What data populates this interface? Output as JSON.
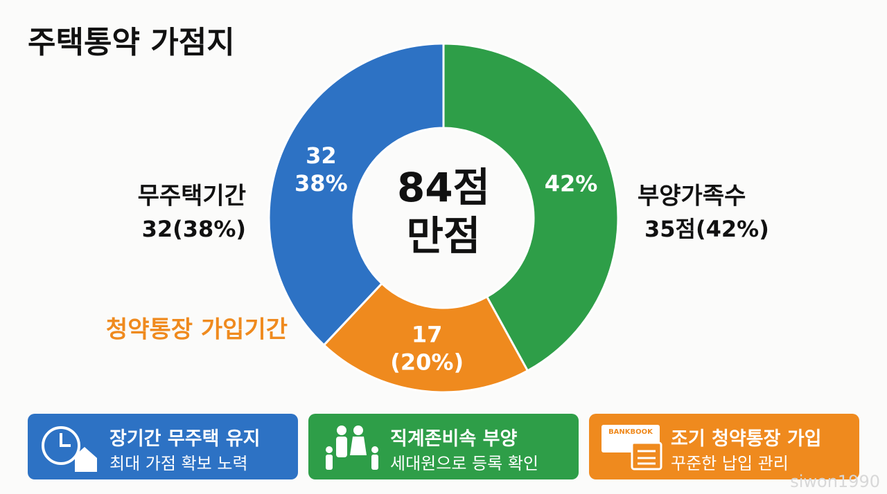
{
  "chart_data": {
    "type": "donut",
    "title": "주택통약 가점지",
    "center_label": [
      "84점",
      "만점"
    ],
    "categories": [
      "부양가족수",
      "청약통장 가입기간",
      "무주택기간"
    ],
    "colors": [
      "#2e9e48",
      "#ef8a1e",
      "#2d72c4"
    ],
    "values": [
      42,
      20,
      38
    ],
    "value_labels": [
      "42%",
      "(20%)",
      "38%"
    ],
    "points": [
      null,
      17,
      32
    ],
    "outer_labels": [
      "35점(42%)",
      null,
      "32(38%)"
    ]
  },
  "cards": [
    {
      "title": "장기간 무주택 유지",
      "subtitle": "최대 가점 확보 노력",
      "color": "#2d72c4"
    },
    {
      "title": "직계존비속 부양",
      "subtitle": "세대원으로 등록 확인",
      "color": "#2e9e48"
    },
    {
      "title": "조기 청약통장 가입",
      "subtitle": "꾸준한 납입 관리",
      "color": "#ef8a1e",
      "badge": "BANKBOOK"
    }
  ],
  "watermark": "siwon1990"
}
